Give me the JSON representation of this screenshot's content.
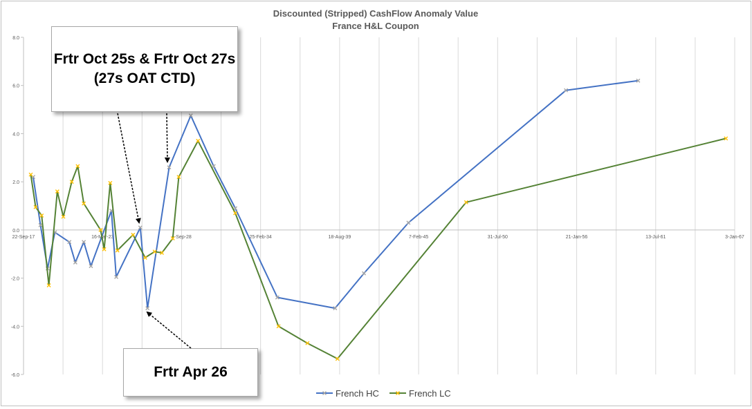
{
  "chart_data": {
    "type": "line",
    "title": "Discounted (Stripped) CashFlow Anomaly Value",
    "subtitle": "France H&L Coupon",
    "x_axis": {
      "type": "date",
      "ticks": [
        "22-Sep-17",
        "16-Mar-23",
        "4-Sep-28",
        "25-Feb-34",
        "18-Aug-39",
        "7-Feb-45",
        "31-Jul-50",
        "21-Jan-56",
        "13-Jul-61",
        "3-Jan-67"
      ],
      "range": [
        "2017-09-22",
        "2067-01-03"
      ]
    },
    "y_axis": {
      "ticks": [
        "8.0",
        "6.0",
        "4.0",
        "2.0",
        "0.0",
        "-2.0",
        "-4.0",
        "-6.0"
      ],
      "range": [
        -6,
        8
      ]
    },
    "grid": "vertical",
    "legend": "bottom",
    "series": [
      {
        "name": "French HC",
        "color": "#4472C4",
        "marker_color": "#A5A5A5",
        "points": [
          [
            "2018-05-25",
            2.2
          ],
          [
            "2018-11-25",
            0.2
          ],
          [
            "2019-05-25",
            -1.6
          ],
          [
            "2019-11-25",
            -0.1
          ],
          [
            "2020-11-25",
            -0.5
          ],
          [
            "2021-04-25",
            -1.35
          ],
          [
            "2021-11-25",
            -0.5
          ],
          [
            "2022-05-25",
            -1.5
          ],
          [
            "2023-10-25",
            0.8
          ],
          [
            "2024-02-25",
            -1.95
          ],
          [
            "2025-10-25",
            0.1
          ],
          [
            "2026-04-25",
            -3.25
          ],
          [
            "2027-10-25",
            2.6
          ],
          [
            "2029-04-25",
            4.75
          ],
          [
            "2030-11-25",
            2.65
          ],
          [
            "2032-05-25",
            0.9
          ],
          [
            "2035-04-25",
            -2.8
          ],
          [
            "2039-04-25",
            -3.25
          ],
          [
            "2041-04-25",
            -1.8
          ],
          [
            "2044-05-25",
            0.3
          ],
          [
            "2055-04-25",
            5.8
          ],
          [
            "2060-04-25",
            6.2
          ]
        ]
      },
      {
        "name": "French LC",
        "color": "#548235",
        "marker_color": "#FFC000",
        "points": [
          [
            "2018-03-25",
            2.3
          ],
          [
            "2018-07-25",
            0.95
          ],
          [
            "2018-12-25",
            0.6
          ],
          [
            "2019-06-25",
            -2.3
          ],
          [
            "2020-01-25",
            1.6
          ],
          [
            "2020-06-25",
            0.55
          ],
          [
            "2021-01-25",
            2.0
          ],
          [
            "2021-06-25",
            2.65
          ],
          [
            "2021-11-25",
            1.1
          ],
          [
            "2023-01-25",
            0.0
          ],
          [
            "2023-04-25",
            -0.8
          ],
          [
            "2023-09-25",
            1.95
          ],
          [
            "2024-03-25",
            -0.85
          ],
          [
            "2025-04-25",
            -0.2
          ],
          [
            "2026-02-25",
            -1.15
          ],
          [
            "2026-10-25",
            -0.9
          ],
          [
            "2027-04-25",
            -0.95
          ],
          [
            "2028-01-25",
            -0.35
          ],
          [
            "2028-06-25",
            2.2
          ],
          [
            "2029-10-25",
            3.7
          ],
          [
            "2032-05-25",
            0.7
          ],
          [
            "2035-05-25",
            -4.0
          ],
          [
            "2037-05-25",
            -4.7
          ],
          [
            "2039-06-25",
            -5.35
          ],
          [
            "2048-05-25",
            1.15
          ],
          [
            "2066-05-25",
            3.8
          ]
        ]
      }
    ],
    "annotations": [
      {
        "id": "oct",
        "text": "Frtr Oct 25s & Frtr Oct 27s\n(27s OAT CTD)"
      },
      {
        "id": "apr",
        "text": "Frtr Apr 26"
      }
    ]
  }
}
